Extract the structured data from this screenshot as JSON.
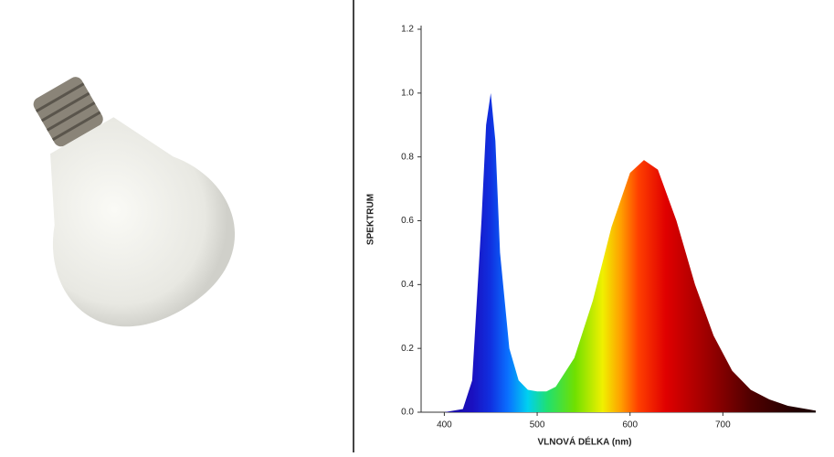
{
  "chart_data": {
    "type": "area",
    "x_label": "VLNOVÁ DÉLKA (nm)",
    "y_label": "SPEKTRUM",
    "x": [
      375,
      400,
      420,
      430,
      440,
      445,
      450,
      455,
      460,
      470,
      480,
      490,
      500,
      510,
      520,
      540,
      560,
      580,
      600,
      615,
      630,
      650,
      670,
      690,
      710,
      730,
      750,
      770,
      800
    ],
    "values": [
      0,
      0.0,
      0.01,
      0.1,
      0.6,
      0.9,
      1.0,
      0.85,
      0.5,
      0.2,
      0.1,
      0.07,
      0.065,
      0.065,
      0.08,
      0.17,
      0.35,
      0.58,
      0.75,
      0.79,
      0.76,
      0.6,
      0.4,
      0.24,
      0.13,
      0.07,
      0.04,
      0.02,
      0.005
    ],
    "xlim": [
      375,
      800
    ],
    "xticks": [
      400,
      500,
      600,
      700
    ],
    "ylim": [
      0,
      1.2
    ],
    "yticks": [
      {
        "value": 0,
        "label": "0.0"
      },
      0.2,
      0.4,
      0.6,
      0.8,
      {
        "value": 1,
        "label": "1.0"
      },
      1.2
    ]
  }
}
